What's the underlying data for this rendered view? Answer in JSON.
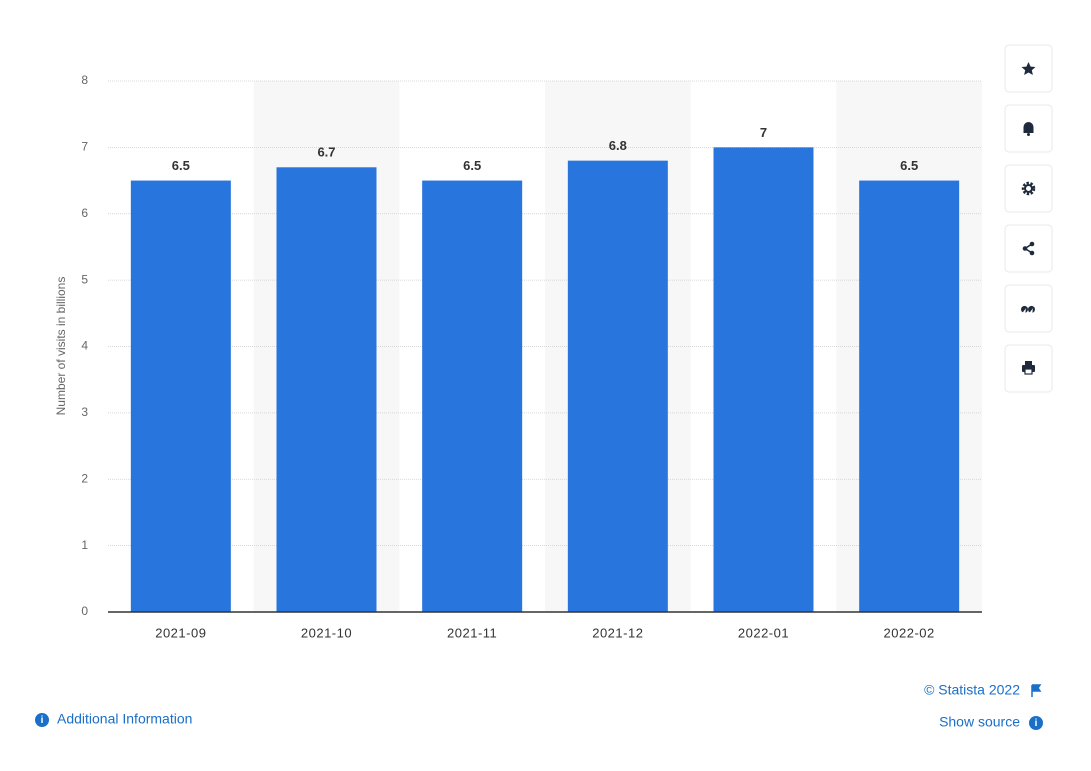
{
  "chart_data": {
    "type": "bar",
    "y_label": "Number of visits in billions",
    "categories": [
      "2021-09",
      "2021-10",
      "2021-11",
      "2021-12",
      "2022-01",
      "2022-02"
    ],
    "values": [
      6.5,
      6.7,
      6.5,
      6.8,
      7,
      6.5
    ],
    "color": "#2876dd",
    "ylim": [
      0,
      8
    ],
    "yticks": [
      0,
      1,
      2,
      3,
      4,
      5,
      6,
      7,
      8
    ],
    "grid": true,
    "data_labels": true
  },
  "footer": {
    "copyright": "© Statista 2022",
    "show_source": "Show source",
    "additional_information": "Additional Information"
  }
}
